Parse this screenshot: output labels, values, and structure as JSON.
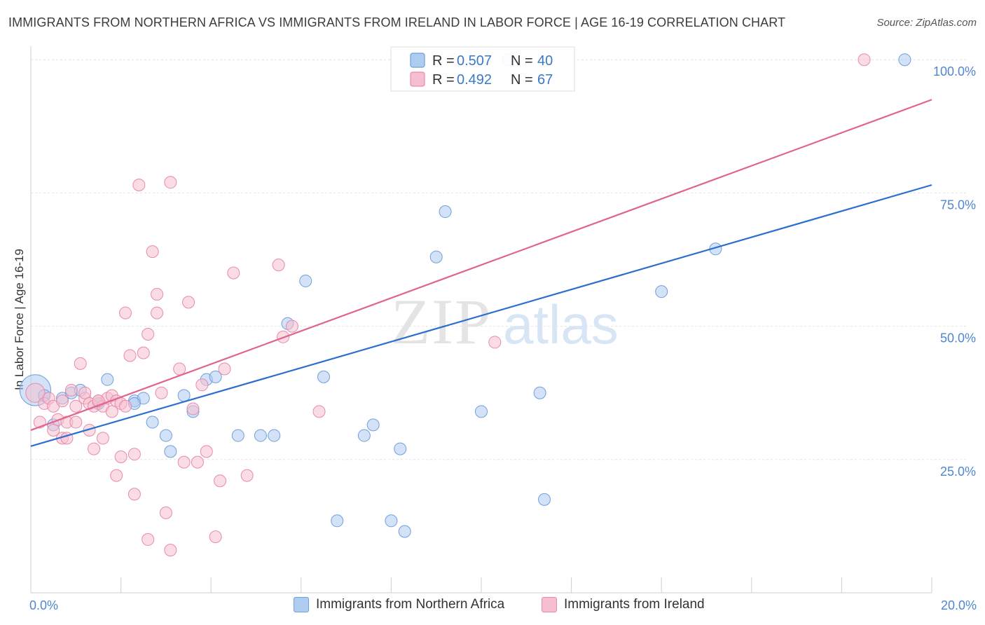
{
  "title": "IMMIGRANTS FROM NORTHERN AFRICA VS IMMIGRANTS FROM IRELAND IN LABOR FORCE | AGE 16-19 CORRELATION CHART",
  "source": "Source: ZipAtlas.com",
  "colors": {
    "blue_fill": "#aecbf0",
    "blue_stroke": "#6f9fdc",
    "blue_line": "#2b6fce",
    "pink_fill": "#f6bfd0",
    "pink_stroke": "#e88aa9",
    "pink_line": "#e0648e",
    "axis_label": "#4f86d0"
  },
  "chart_data": {
    "type": "scatter",
    "ylabel": "In Labor Force | Age 16-19",
    "xlim": [
      0,
      20
    ],
    "ylim": [
      0,
      102
    ],
    "x_ticks": [
      {
        "value": 0,
        "label": "0.0%"
      },
      {
        "value": 20,
        "label": "20.0%"
      }
    ],
    "y_ticks": [
      {
        "value": 25,
        "label": "25.0%"
      },
      {
        "value": 50,
        "label": "50.0%"
      },
      {
        "value": 75,
        "label": "75.0%"
      },
      {
        "value": 100,
        "label": "100.0%"
      }
    ],
    "legend_position": "top-center",
    "series": [
      {
        "name": "Immigrants from Northern Africa",
        "R": "0.507",
        "N": "40",
        "r_label": "R =",
        "n_label": "N =",
        "trend": {
          "x": [
            0,
            20
          ],
          "y": [
            27.5,
            76.5
          ]
        },
        "points": [
          [
            0.1,
            38,
            2.6
          ],
          [
            0.3,
            37,
            1
          ],
          [
            0.5,
            31.5,
            1
          ],
          [
            0.7,
            36.5,
            1
          ],
          [
            0.9,
            37.5,
            1
          ],
          [
            1.1,
            38,
            1
          ],
          [
            1.5,
            35.5,
            1
          ],
          [
            1.7,
            40,
            1
          ],
          [
            2.3,
            36,
            1
          ],
          [
            2.5,
            36.5,
            1
          ],
          [
            2.7,
            32,
            1
          ],
          [
            3.0,
            29.5,
            1
          ],
          [
            3.1,
            26.5,
            1
          ],
          [
            3.4,
            37,
            1
          ],
          [
            3.6,
            34,
            1
          ],
          [
            3.9,
            40,
            1
          ],
          [
            4.1,
            40.5,
            1
          ],
          [
            4.6,
            29.5,
            1
          ],
          [
            5.1,
            29.5,
            1
          ],
          [
            5.4,
            29.5,
            1
          ],
          [
            5.7,
            50.5,
            1
          ],
          [
            6.1,
            58.5,
            1
          ],
          [
            6.5,
            40.5,
            1
          ],
          [
            6.8,
            13.5,
            1
          ],
          [
            7.4,
            29.5,
            1
          ],
          [
            7.6,
            31.5,
            1
          ],
          [
            8.0,
            13.5,
            1
          ],
          [
            8.3,
            11.5,
            1
          ],
          [
            8.2,
            27,
            1
          ],
          [
            9.0,
            63,
            1
          ],
          [
            9.2,
            71.5,
            1
          ],
          [
            10.0,
            34,
            1
          ],
          [
            10.6,
            100,
            1
          ],
          [
            11.3,
            37.5,
            1
          ],
          [
            11.4,
            17.5,
            1
          ],
          [
            14.0,
            56.5,
            1
          ],
          [
            15.2,
            64.5,
            1
          ],
          [
            19.4,
            100,
            1
          ],
          [
            1.5,
            35.5,
            1
          ],
          [
            2.3,
            35.5,
            1
          ]
        ]
      },
      {
        "name": "Immigrants from Ireland",
        "R": "0.492",
        "N": "67",
        "r_label": "R =",
        "n_label": "N =",
        "trend": {
          "x": [
            0,
            20
          ],
          "y": [
            30.5,
            92.5
          ]
        },
        "points": [
          [
            0.1,
            37.5,
            1.6
          ],
          [
            0.2,
            32,
            1
          ],
          [
            0.3,
            35.5,
            1
          ],
          [
            0.4,
            36.5,
            1
          ],
          [
            0.5,
            35,
            1
          ],
          [
            0.5,
            30.5,
            1
          ],
          [
            0.6,
            32.5,
            1
          ],
          [
            0.7,
            36,
            1
          ],
          [
            0.7,
            29,
            1
          ],
          [
            0.8,
            32,
            1
          ],
          [
            0.8,
            29,
            1
          ],
          [
            0.9,
            38,
            1
          ],
          [
            1.0,
            32,
            1
          ],
          [
            1.0,
            35,
            1
          ],
          [
            1.1,
            43,
            1
          ],
          [
            1.2,
            36.5,
            1
          ],
          [
            1.2,
            37.5,
            1
          ],
          [
            1.3,
            35.5,
            1
          ],
          [
            1.3,
            30.5,
            1
          ],
          [
            1.4,
            27,
            1
          ],
          [
            1.4,
            35,
            1
          ],
          [
            1.5,
            36,
            1
          ],
          [
            1.6,
            35,
            1
          ],
          [
            1.6,
            29,
            1
          ],
          [
            1.7,
            36.5,
            1
          ],
          [
            1.8,
            37,
            1
          ],
          [
            1.8,
            34,
            1
          ],
          [
            1.9,
            22,
            1
          ],
          [
            1.9,
            36,
            1
          ],
          [
            2.0,
            25.5,
            1
          ],
          [
            2.0,
            35.5,
            1
          ],
          [
            2.1,
            35,
            1
          ],
          [
            2.1,
            52.5,
            1
          ],
          [
            2.2,
            44.5,
            1
          ],
          [
            2.3,
            26,
            1
          ],
          [
            2.3,
            18.5,
            1
          ],
          [
            2.4,
            76.5,
            1
          ],
          [
            2.5,
            45,
            1
          ],
          [
            2.6,
            48.5,
            1
          ],
          [
            2.6,
            10,
            1
          ],
          [
            2.7,
            64,
            1
          ],
          [
            2.8,
            52.5,
            1
          ],
          [
            2.8,
            56,
            1
          ],
          [
            2.9,
            37.5,
            1
          ],
          [
            3.0,
            15,
            1
          ],
          [
            3.1,
            77,
            1
          ],
          [
            3.1,
            8,
            1
          ],
          [
            3.3,
            42,
            1
          ],
          [
            3.4,
            24.5,
            1
          ],
          [
            3.5,
            54.5,
            1
          ],
          [
            3.6,
            34.5,
            1
          ],
          [
            3.7,
            24.5,
            1
          ],
          [
            3.8,
            39,
            1
          ],
          [
            3.9,
            26.5,
            1
          ],
          [
            4.1,
            10.5,
            1
          ],
          [
            4.2,
            21,
            1
          ],
          [
            4.3,
            42,
            1
          ],
          [
            4.5,
            60,
            1
          ],
          [
            4.8,
            22,
            1
          ],
          [
            5.5,
            61.5,
            1
          ],
          [
            5.6,
            48,
            1
          ],
          [
            5.8,
            50,
            1
          ],
          [
            6.4,
            34,
            1
          ],
          [
            9.4,
            100,
            1
          ],
          [
            10.3,
            47,
            1
          ],
          [
            18.5,
            100,
            1
          ],
          [
            1.5,
            36,
            1
          ]
        ]
      }
    ]
  }
}
